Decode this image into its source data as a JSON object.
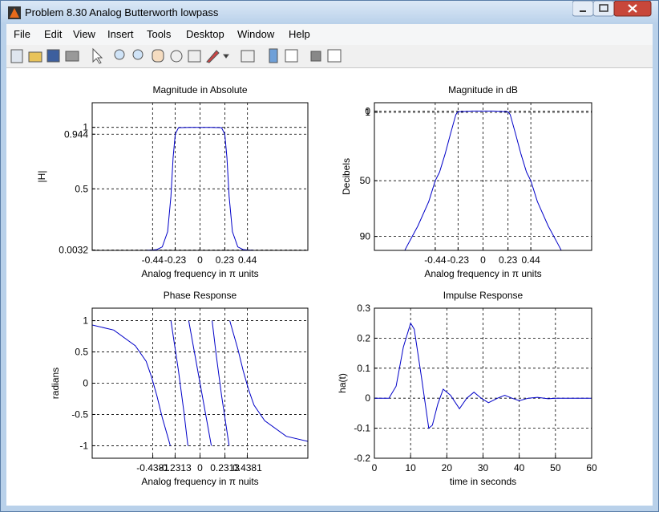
{
  "window": {
    "title": "Problem 8.30 Analog Butterworth lowpass"
  },
  "menu": [
    "File",
    "Edit",
    "View",
    "Insert",
    "Tools",
    "Desktop",
    "Window",
    "Help"
  ],
  "chart_data": [
    {
      "type": "line",
      "title": "Magnitude in Absolute",
      "xlabel": "Analog frequency in π units",
      "ylabel": "|H|",
      "x": [
        -1,
        -0.7,
        -0.5,
        -0.44,
        -0.4,
        -0.35,
        -0.3,
        -0.27,
        -0.25,
        -0.23,
        -0.2,
        -0.1,
        0,
        0.1,
        0.2,
        0.23,
        0.25,
        0.27,
        0.3,
        0.35,
        0.4,
        0.44,
        0.5,
        0.7,
        1
      ],
      "series": [
        {
          "color": "#0000c8",
          "values": [
            0,
            0,
            0.00056,
            0.0032,
            0.0065,
            0.028,
            0.152,
            0.439,
            0.751,
            0.944,
            0.997,
            1,
            1,
            1,
            0.997,
            0.944,
            0.751,
            0.439,
            0.152,
            0.028,
            0.0065,
            0.0032,
            0.00056,
            0,
            0
          ]
        }
      ],
      "xlim": [
        -1,
        1
      ],
      "ylim": [
        0,
        1.2
      ],
      "xticks": [
        -0.44,
        -0.23,
        0,
        0.23,
        0.44
      ],
      "yticks": [
        0.0032,
        0.5,
        0.944,
        1
      ],
      "grid": true
    },
    {
      "type": "line",
      "title": "Magnitude in dB",
      "xlabel": "Analog frequency in π units",
      "ylabel": "Decibels",
      "x": [
        -0.72,
        -0.7,
        -0.6,
        -0.5,
        -0.44,
        -0.4,
        -0.35,
        -0.3,
        -0.25,
        -0.23,
        -0.1,
        0,
        0.1,
        0.23,
        0.25,
        0.3,
        0.35,
        0.4,
        0.44,
        0.5,
        0.6,
        0.7,
        0.72
      ],
      "series": [
        {
          "color": "#0000c8",
          "values": [
            100,
            97,
            82.5,
            65,
            50,
            43.8,
            31,
            16.4,
            2.5,
            0.5,
            0,
            0,
            0,
            0.5,
            2.5,
            16.4,
            31,
            43.8,
            50,
            65,
            82.5,
            97,
            100
          ]
        }
      ],
      "xlim": [
        -1,
        1
      ],
      "ylim": [
        -6,
        100
      ],
      "y_reverse": true,
      "xticks": [
        -0.44,
        -0.23,
        0,
        0.23,
        0.44
      ],
      "yticks": [
        0,
        1,
        50,
        90
      ],
      "grid": true
    },
    {
      "type": "line",
      "title": "Phase Response",
      "xlabel": "Analog frequency in π nuits",
      "ylabel": "radians",
      "x": [
        -1,
        -0.8,
        -0.6,
        -0.5,
        -0.45,
        -0.4,
        -0.35,
        -0.3,
        -0.276,
        null,
        -0.27,
        -0.2,
        -0.15,
        -0.112,
        null,
        -0.105,
        0,
        0.105,
        null,
        0.112,
        0.15,
        0.2,
        0.27,
        null,
        0.276,
        0.3,
        0.35,
        0.4,
        0.45,
        0.5,
        0.6,
        0.8,
        1
      ],
      "series": [
        {
          "color": "#0000c8",
          "values": [
            0.93,
            0.85,
            0.6,
            0.35,
            0.1,
            -0.2,
            -0.55,
            -0.85,
            -1,
            null,
            1,
            0.2,
            -0.45,
            -1,
            null,
            1,
            0,
            -1,
            null,
            1,
            0.45,
            -0.2,
            -1,
            null,
            1,
            0.85,
            0.55,
            0.2,
            -0.1,
            -0.35,
            -0.6,
            -0.85,
            -0.93
          ]
        }
      ],
      "xlim": [
        -1,
        1
      ],
      "ylim": [
        -1.2,
        1.2
      ],
      "xticks": [
        -0.4381,
        -0.2313,
        0,
        0.2313,
        0.4381
      ],
      "yticks": [
        -1,
        -0.5,
        0,
        0.5,
        1
      ],
      "grid": true
    },
    {
      "type": "line",
      "title": "Impulse Response",
      "xlabel": "time in seconds",
      "ylabel": "ha(t)",
      "x": [
        0,
        4,
        6,
        8,
        10,
        11,
        13,
        15,
        16,
        17.5,
        19,
        21,
        23.5,
        25.5,
        27.5,
        29.5,
        31.5,
        34,
        36,
        38,
        40,
        42.5,
        45,
        48,
        50,
        60
      ],
      "series": [
        {
          "color": "#0000c8",
          "values": [
            0,
            0,
            0.04,
            0.17,
            0.25,
            0.23,
            0.07,
            -0.1,
            -0.09,
            -0.02,
            0.03,
            0.01,
            -0.035,
            0,
            0.02,
            0,
            -0.015,
            0,
            0.01,
            0,
            -0.008,
            0,
            0.003,
            -0.002,
            0,
            0
          ]
        }
      ],
      "xlim": [
        0,
        60
      ],
      "ylim": [
        -0.2,
        0.3
      ],
      "xticks": [
        0,
        10,
        20,
        30,
        40,
        50,
        60
      ],
      "yticks": [
        -0.2,
        -0.1,
        0,
        0.1,
        0.2,
        0.3
      ],
      "grid": true
    }
  ]
}
